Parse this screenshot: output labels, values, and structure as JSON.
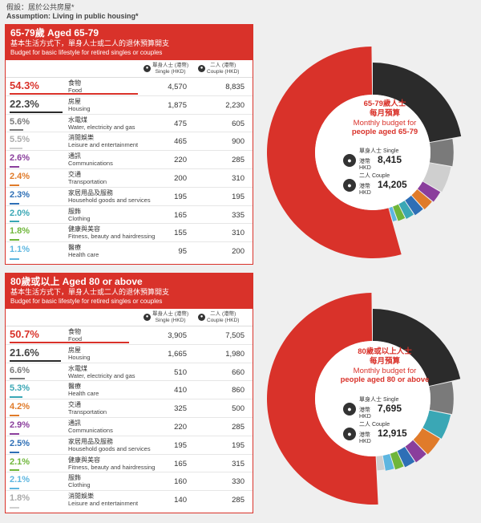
{
  "assumption": {
    "zh": "假設：居於公共房屋*",
    "en": "Assumption: Living in public housing*"
  },
  "colors": {
    "red": "#d9322a",
    "dark": "#2b2b2b",
    "grey": "#7a7a7a",
    "lightgrey": "#cfcfcf",
    "purple": "#8a3e9c",
    "orange": "#e07b2a",
    "blue": "#2e6fb6",
    "teal": "#3aa7b5",
    "green": "#6fb63a",
    "lightblue": "#5db6e0"
  },
  "chart_data": [
    {
      "type": "table",
      "title": "65-79歲 Aged 65-79",
      "subtitle_zh": "基本生活方式下，單身人士或二人的退休預算開支",
      "subtitle_en": "Budget for basic lifestyle for retired singles or couples",
      "col_single": {
        "zh": "單身人士 (港幣)",
        "en": "Single (HKD)"
      },
      "col_couple": {
        "zh": "二人 (港幣)",
        "en": "Couple (HKD)"
      },
      "rows": [
        {
          "pct": "54.3%",
          "zh": "食物",
          "en": "Food",
          "single": "4,570",
          "couple": "8,835",
          "color": "#d9322a"
        },
        {
          "pct": "22.3%",
          "zh": "房屋",
          "en": "Housing",
          "single": "1,875",
          "couple": "2,230",
          "color": "#2b2b2b"
        },
        {
          "pct": "5.6%",
          "zh": "水電煤",
          "en": "Water, electricity and gas",
          "single": "475",
          "couple": "605",
          "color": "#7a7a7a"
        },
        {
          "pct": "5.5%",
          "zh": "消閒娛樂",
          "en": "Leisure and entertainment",
          "single": "465",
          "couple": "900",
          "color": "#cfcfcf"
        },
        {
          "pct": "2.6%",
          "zh": "通訊",
          "en": "Communications",
          "single": "220",
          "couple": "285",
          "color": "#8a3e9c"
        },
        {
          "pct": "2.4%",
          "zh": "交通",
          "en": "Transportation",
          "single": "200",
          "couple": "310",
          "color": "#e07b2a"
        },
        {
          "pct": "2.3%",
          "zh": "家居用品及服務",
          "en": "Household goods and services",
          "single": "195",
          "couple": "195",
          "color": "#2e6fb6"
        },
        {
          "pct": "2.0%",
          "zh": "服飾",
          "en": "Clothing",
          "single": "165",
          "couple": "335",
          "color": "#3aa7b5"
        },
        {
          "pct": "1.8%",
          "zh": "健康與美容",
          "en": "Fitness, beauty and hairdressing",
          "single": "155",
          "couple": "310",
          "color": "#6fb63a"
        },
        {
          "pct": "1.1%",
          "zh": "醫療",
          "en": "Health care",
          "single": "95",
          "couple": "200",
          "color": "#5db6e0"
        }
      ],
      "ring": {
        "title_zh": "65-79歲人士",
        "title_zh2": "每月預算",
        "sub1": "Monthly budget for",
        "sub2": "people aged 65-79",
        "single_label": "單身人士 Single",
        "couple_label": "二人 Couple",
        "hkd": "港幣 HKD",
        "single_value": "8,415",
        "couple_value": "14,205"
      }
    },
    {
      "type": "table",
      "title": "80歲或以上 Aged 80 or above",
      "subtitle_zh": "基本生活方式下，單身人士或二人的退休預算開支",
      "subtitle_en": "Budget for basic lifestyle for retired singles or couples",
      "col_single": {
        "zh": "單身人士 (港幣)",
        "en": "Single (HKD)"
      },
      "col_couple": {
        "zh": "二人 (港幣)",
        "en": "Couple (HKD)"
      },
      "rows": [
        {
          "pct": "50.7%",
          "zh": "食物",
          "en": "Food",
          "single": "3,905",
          "couple": "7,505",
          "color": "#d9322a"
        },
        {
          "pct": "21.6%",
          "zh": "房屋",
          "en": "Housing",
          "single": "1,665",
          "couple": "1,980",
          "color": "#2b2b2b"
        },
        {
          "pct": "6.6%",
          "zh": "水電煤",
          "en": "Water, electricity and gas",
          "single": "510",
          "couple": "660",
          "color": "#7a7a7a"
        },
        {
          "pct": "5.3%",
          "zh": "醫療",
          "en": "Health care",
          "single": "410",
          "couple": "860",
          "color": "#3aa7b5"
        },
        {
          "pct": "4.2%",
          "zh": "交通",
          "en": "Transportation",
          "single": "325",
          "couple": "500",
          "color": "#e07b2a"
        },
        {
          "pct": "2.9%",
          "zh": "通訊",
          "en": "Communications",
          "single": "220",
          "couple": "285",
          "color": "#8a3e9c"
        },
        {
          "pct": "2.5%",
          "zh": "家居用品及服務",
          "en": "Household goods and services",
          "single": "195",
          "couple": "195",
          "color": "#2e6fb6"
        },
        {
          "pct": "2.1%",
          "zh": "健康與美容",
          "en": "Fitness, beauty and hairdressing",
          "single": "165",
          "couple": "315",
          "color": "#6fb63a"
        },
        {
          "pct": "2.1%",
          "zh": "服飾",
          "en": "Clothing",
          "single": "160",
          "couple": "330",
          "color": "#5db6e0"
        },
        {
          "pct": "1.8%",
          "zh": "消閒娛樂",
          "en": "Leisure and entertainment",
          "single": "140",
          "couple": "285",
          "color": "#cfcfcf"
        }
      ],
      "ring": {
        "title_zh": "80歲或以上人士",
        "title_zh2": "每月預算",
        "sub1": "Monthly budget for",
        "sub2": "people aged 80 or above",
        "single_label": "單身人士 Single",
        "couple_label": "二人 Couple",
        "hkd": "港幣 HKD",
        "single_value": "7,695",
        "couple_value": "12,915"
      }
    }
  ]
}
